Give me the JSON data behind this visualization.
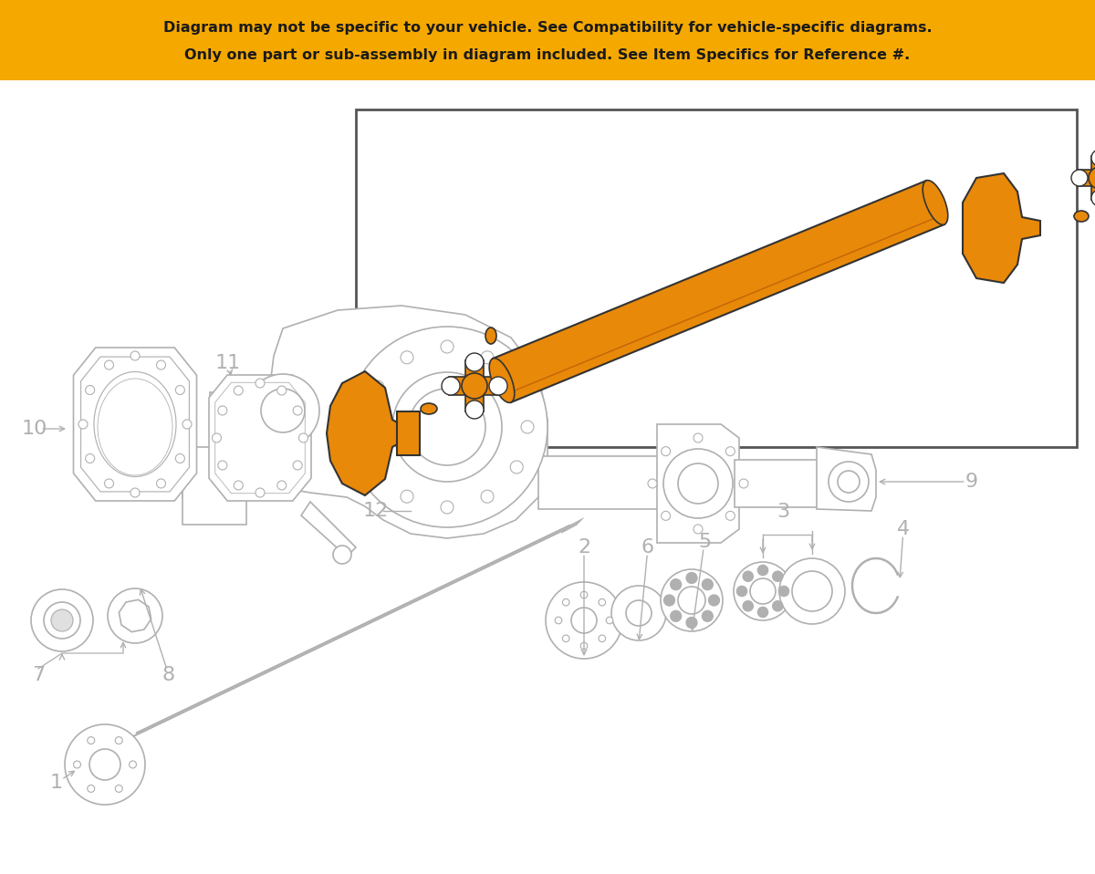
{
  "bg_color": "#ffffff",
  "line_color": "#b0b0b0",
  "dark_line_color": "#555555",
  "orange_color": "#e8890a",
  "banner_color": "#f5a800",
  "banner_text_color": "#1a1a1a",
  "banner_text1": "Only one part or sub-assembly in diagram included. See Item Specifics for Reference #.",
  "banner_text2": "Diagram may not be specific to your vehicle. See Compatibility for vehicle-specific diagrams.",
  "label_color": "#888888",
  "figsize": [
    12.0,
    9.58
  ],
  "dpi": 100
}
